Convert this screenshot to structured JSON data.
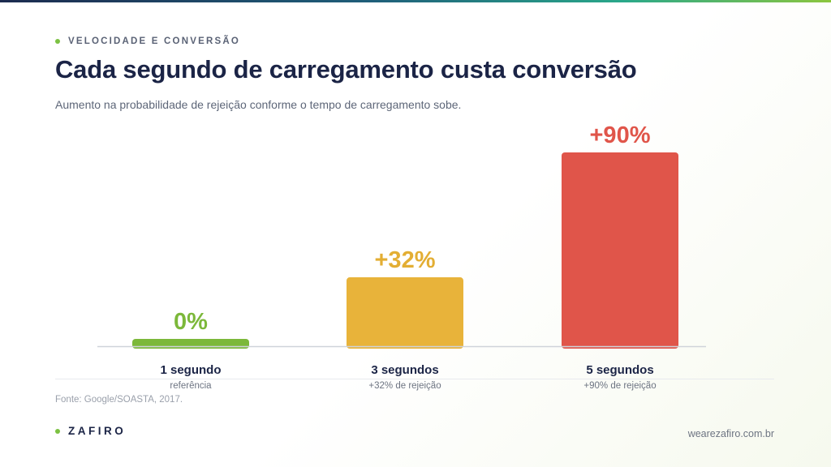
{
  "header": {
    "eyebrow": "VELOCIDADE E CONVERSÃO",
    "title": "Cada segundo de carregamento custa conversão",
    "subtitle": "Aumento na probabilidade de rejeição conforme o tempo de carregamento sobe."
  },
  "chart_data": {
    "type": "bar",
    "title": "",
    "xlabel": "",
    "ylabel": "",
    "ylim": [
      0,
      90
    ],
    "grid": false,
    "categories": [
      "1 segundo",
      "3 segundos",
      "5 segundos"
    ],
    "values": [
      0,
      32,
      90
    ],
    "value_labels": [
      "0%",
      "+32%",
      "+90%"
    ],
    "sublabels": [
      "referência",
      "+32% de rejeição",
      "+90% de rejeição"
    ],
    "colors": [
      "#7cb83a",
      "#e8b33a",
      "#e0554a"
    ],
    "label_colors": [
      "#7cb83a",
      "#e3ae33",
      "#e0554a"
    ]
  },
  "footer": {
    "source": "Fonte: Google/SOASTA, 2017.",
    "brand": "ZAFIRO",
    "site": "wearezafiro.com.br"
  },
  "colors": {
    "accent": "#7cc142",
    "title": "#1b2446"
  }
}
